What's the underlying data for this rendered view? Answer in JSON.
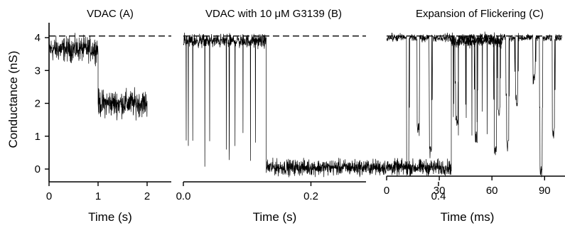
{
  "chart_data": [
    {
      "type": "line",
      "title": "VDAC (A)",
      "xlabel": "Time (s)",
      "ylabel": "Conductance (nS)",
      "xlim": [
        0,
        2.3
      ],
      "ylim": [
        -0.4,
        4.5
      ],
      "xticks": [
        0,
        1,
        2
      ],
      "xtick_labels": [
        "0",
        "1",
        "2"
      ],
      "yticks": [
        0,
        1,
        2,
        3,
        4
      ],
      "ytick_labels": [
        "0",
        "1",
        "2",
        "3",
        "4"
      ],
      "reference_line": {
        "y": 4.05,
        "style": "dashed"
      },
      "segments": [
        {
          "x_start": 0.0,
          "x_end": 1.0,
          "mean": 3.65,
          "noise_range": [
            3.2,
            4.3
          ]
        },
        {
          "x_start": 1.0,
          "x_end": 2.0,
          "mean": 2.0,
          "noise_range": [
            1.4,
            2.6
          ]
        }
      ],
      "grid": false
    },
    {
      "type": "line",
      "title": "VDAC with 10 μM G3139 (B)",
      "xlabel": "Time (s)",
      "xlim": [
        0,
        0.52
      ],
      "ylim": [
        -0.4,
        4.5
      ],
      "xticks": [
        0.0,
        0.2,
        0.4
      ],
      "xtick_labels": [
        "0.0",
        "0.2",
        "0.4"
      ],
      "reference_line": {
        "y": 4.05,
        "style": "dashed"
      },
      "segments": [
        {
          "x_start": 0.0,
          "x_end": 0.13,
          "mean": 3.9,
          "noise_range": [
            3.6,
            4.2
          ],
          "flicker_to": 0.0
        },
        {
          "x_start": 0.13,
          "x_end": 0.42,
          "mean": 0.05,
          "noise_range": [
            -0.3,
            0.4
          ]
        },
        {
          "x_start": 0.42,
          "x_end": 0.5,
          "mean": 3.9,
          "noise_range": [
            3.6,
            4.2
          ],
          "flicker_to": 1.0
        }
      ],
      "grid": false
    },
    {
      "type": "line",
      "title": "Expansion of Flickering (C)",
      "xlabel": "Time (ms)",
      "xlim": [
        0,
        100
      ],
      "ylim": [
        -0.4,
        4.5
      ],
      "xticks": [
        0,
        30,
        60,
        90
      ],
      "xtick_labels": [
        "0",
        "30",
        "60",
        "90"
      ],
      "reference_line": {
        "y": 4.05,
        "style": "dashed"
      },
      "baseline": 4.0,
      "flicker_events": [
        {
          "t": 12,
          "depth": -0.2
        },
        {
          "t": 18,
          "depth": 1.0
        },
        {
          "t": 25,
          "depth": 0.3
        },
        {
          "t": 40,
          "depth": 1.3
        },
        {
          "t": 51,
          "depth": 0.8
        },
        {
          "t": 62,
          "depth": 0.3
        },
        {
          "t": 64,
          "depth": 1.5
        },
        {
          "t": 69,
          "depth": 0.5
        },
        {
          "t": 74,
          "depth": 1.9
        },
        {
          "t": 84,
          "depth": 2.5
        },
        {
          "t": 88,
          "depth": -0.3
        },
        {
          "t": 95,
          "depth": 0.9
        }
      ],
      "grid": false
    }
  ]
}
